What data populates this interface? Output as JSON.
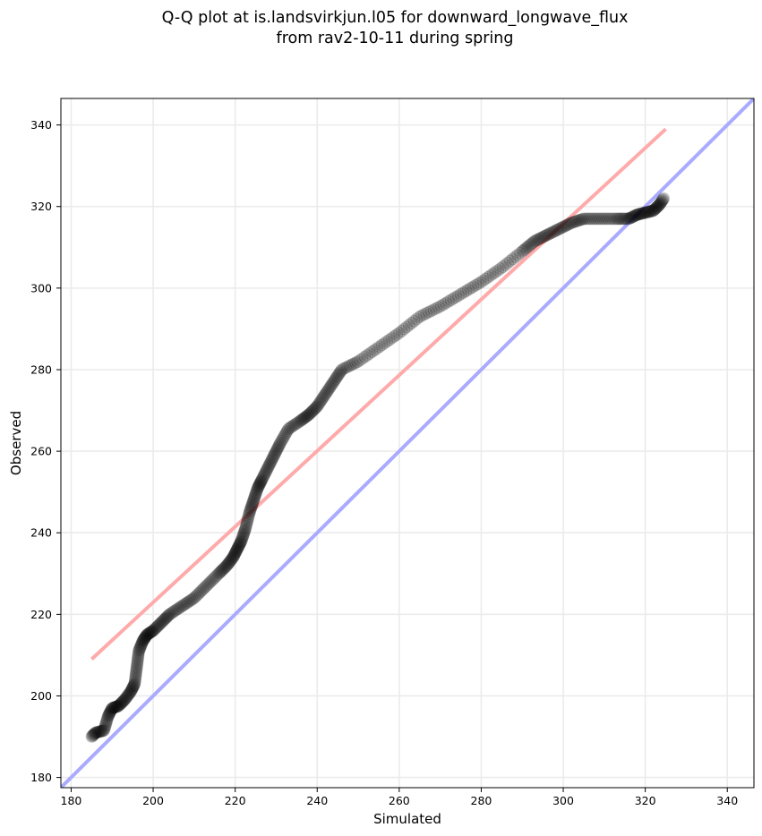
{
  "chart_data": {
    "type": "scatter",
    "title_lines": [
      "Q-Q plot at is.landsvirkjun.l05 for downward_longwave_flux",
      "from rav2-10-11 during spring"
    ],
    "xlabel": "Simulated",
    "ylabel": "Observed",
    "xlim": [
      177.5,
      346.5
    ],
    "ylim": [
      177.5,
      346.5
    ],
    "xticks": [
      180,
      200,
      220,
      240,
      260,
      280,
      300,
      320,
      340
    ],
    "yticks": [
      180,
      200,
      220,
      240,
      260,
      280,
      300,
      320,
      340
    ],
    "grid": true,
    "reference_lines": [
      {
        "name": "one-to-one",
        "color": "#aaaaff",
        "x": [
          177.5,
          346.5
        ],
        "y": [
          177.5,
          346.5
        ]
      },
      {
        "name": "fit",
        "color": "#ffaaaa",
        "x": [
          185,
          325
        ],
        "y": [
          209,
          339
        ]
      }
    ],
    "quantile_anchors": {
      "x": [
        185,
        186,
        188,
        189,
        190,
        191.5,
        193,
        194.5,
        195.5,
        196,
        196.5,
        197.5,
        198.5,
        200,
        202,
        204,
        207,
        210,
        213,
        216,
        218,
        219.5,
        220.5,
        221.5,
        222.5,
        223.5,
        224.5,
        225.5,
        226.5,
        228,
        229.5,
        231,
        233,
        236,
        238,
        240,
        242,
        244,
        246,
        250,
        255,
        260,
        265,
        270,
        275,
        280,
        285,
        290,
        293,
        296,
        299,
        302,
        305,
        309,
        313,
        316,
        318,
        320,
        322,
        323.5,
        324.5
      ],
      "y": [
        190,
        191,
        191.5,
        195,
        197,
        197.5,
        199,
        201,
        203,
        207,
        211,
        213.5,
        215,
        216,
        218,
        220,
        222,
        224,
        227,
        230,
        232,
        234,
        236,
        238,
        241,
        245,
        248,
        251,
        253,
        256,
        259,
        262,
        265.5,
        267.5,
        269,
        271,
        274,
        277,
        280,
        282,
        285.5,
        289,
        293,
        295.5,
        298.5,
        301.5,
        305,
        309,
        311.5,
        313,
        314.5,
        316,
        317,
        317,
        317,
        317,
        318,
        318.5,
        319,
        320.5,
        322
      ]
    },
    "colors": {
      "points": "#000000",
      "fit_line": "#ffaaaa",
      "identity_line": "#aaaaff",
      "grid": "#ebebeb"
    }
  }
}
